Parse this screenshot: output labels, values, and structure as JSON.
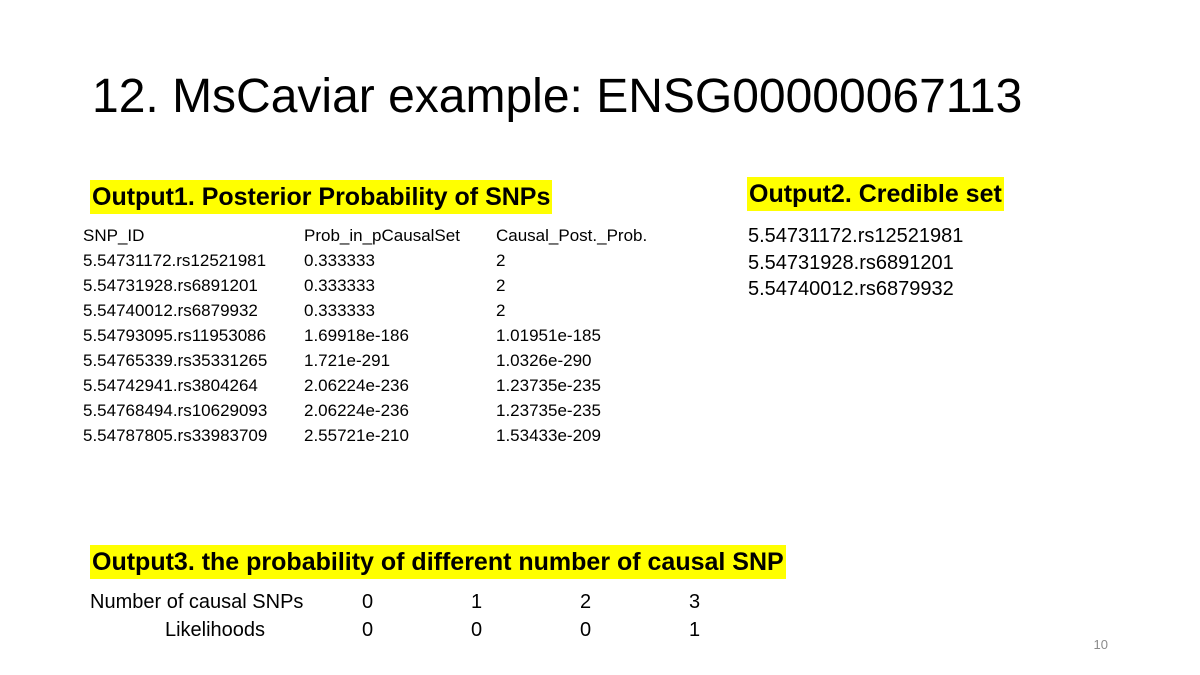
{
  "slide": {
    "title": "12. MsCaviar example: ENSG00000067113",
    "page_number": "10"
  },
  "output1": {
    "heading": "Output1. Posterior Probability of SNPs",
    "columns": [
      "SNP_ID",
      "Prob_in_pCausalSet",
      "Causal_Post._Prob."
    ],
    "rows": [
      [
        "5.54731172.rs12521981",
        "0.333333",
        "2"
      ],
      [
        "5.54731928.rs6891201",
        "0.333333",
        "2"
      ],
      [
        "5.54740012.rs6879932",
        "0.333333",
        "2"
      ],
      [
        "5.54793095.rs11953086",
        "1.69918e-186",
        "1.01951e-185"
      ],
      [
        "5.54765339.rs35331265",
        "1.721e-291",
        "1.0326e-290"
      ],
      [
        "5.54742941.rs3804264",
        "2.06224e-236",
        "1.23735e-235"
      ],
      [
        "5.54768494.rs10629093",
        "2.06224e-236",
        "1.23735e-235"
      ],
      [
        "5.54787805.rs33983709",
        "2.55721e-210",
        "1.53433e-209"
      ]
    ]
  },
  "output2": {
    "heading": "Output2. Credible set",
    "items": [
      "5.54731172.rs12521981",
      "5.54731928.rs6891201",
      "5.54740012.rs6879932"
    ]
  },
  "output3": {
    "heading": "Output3. the probability of different number of causal SNP",
    "rows": [
      {
        "label": "Number of causal SNPs",
        "values": [
          "0",
          "1",
          "2",
          "3"
        ]
      },
      {
        "label": "Likelihoods",
        "values": [
          "0",
          "0",
          "0",
          "1"
        ]
      }
    ]
  },
  "colors": {
    "highlight": "#ffff00",
    "text": "#000000",
    "page_number": "#8a8a8a"
  }
}
